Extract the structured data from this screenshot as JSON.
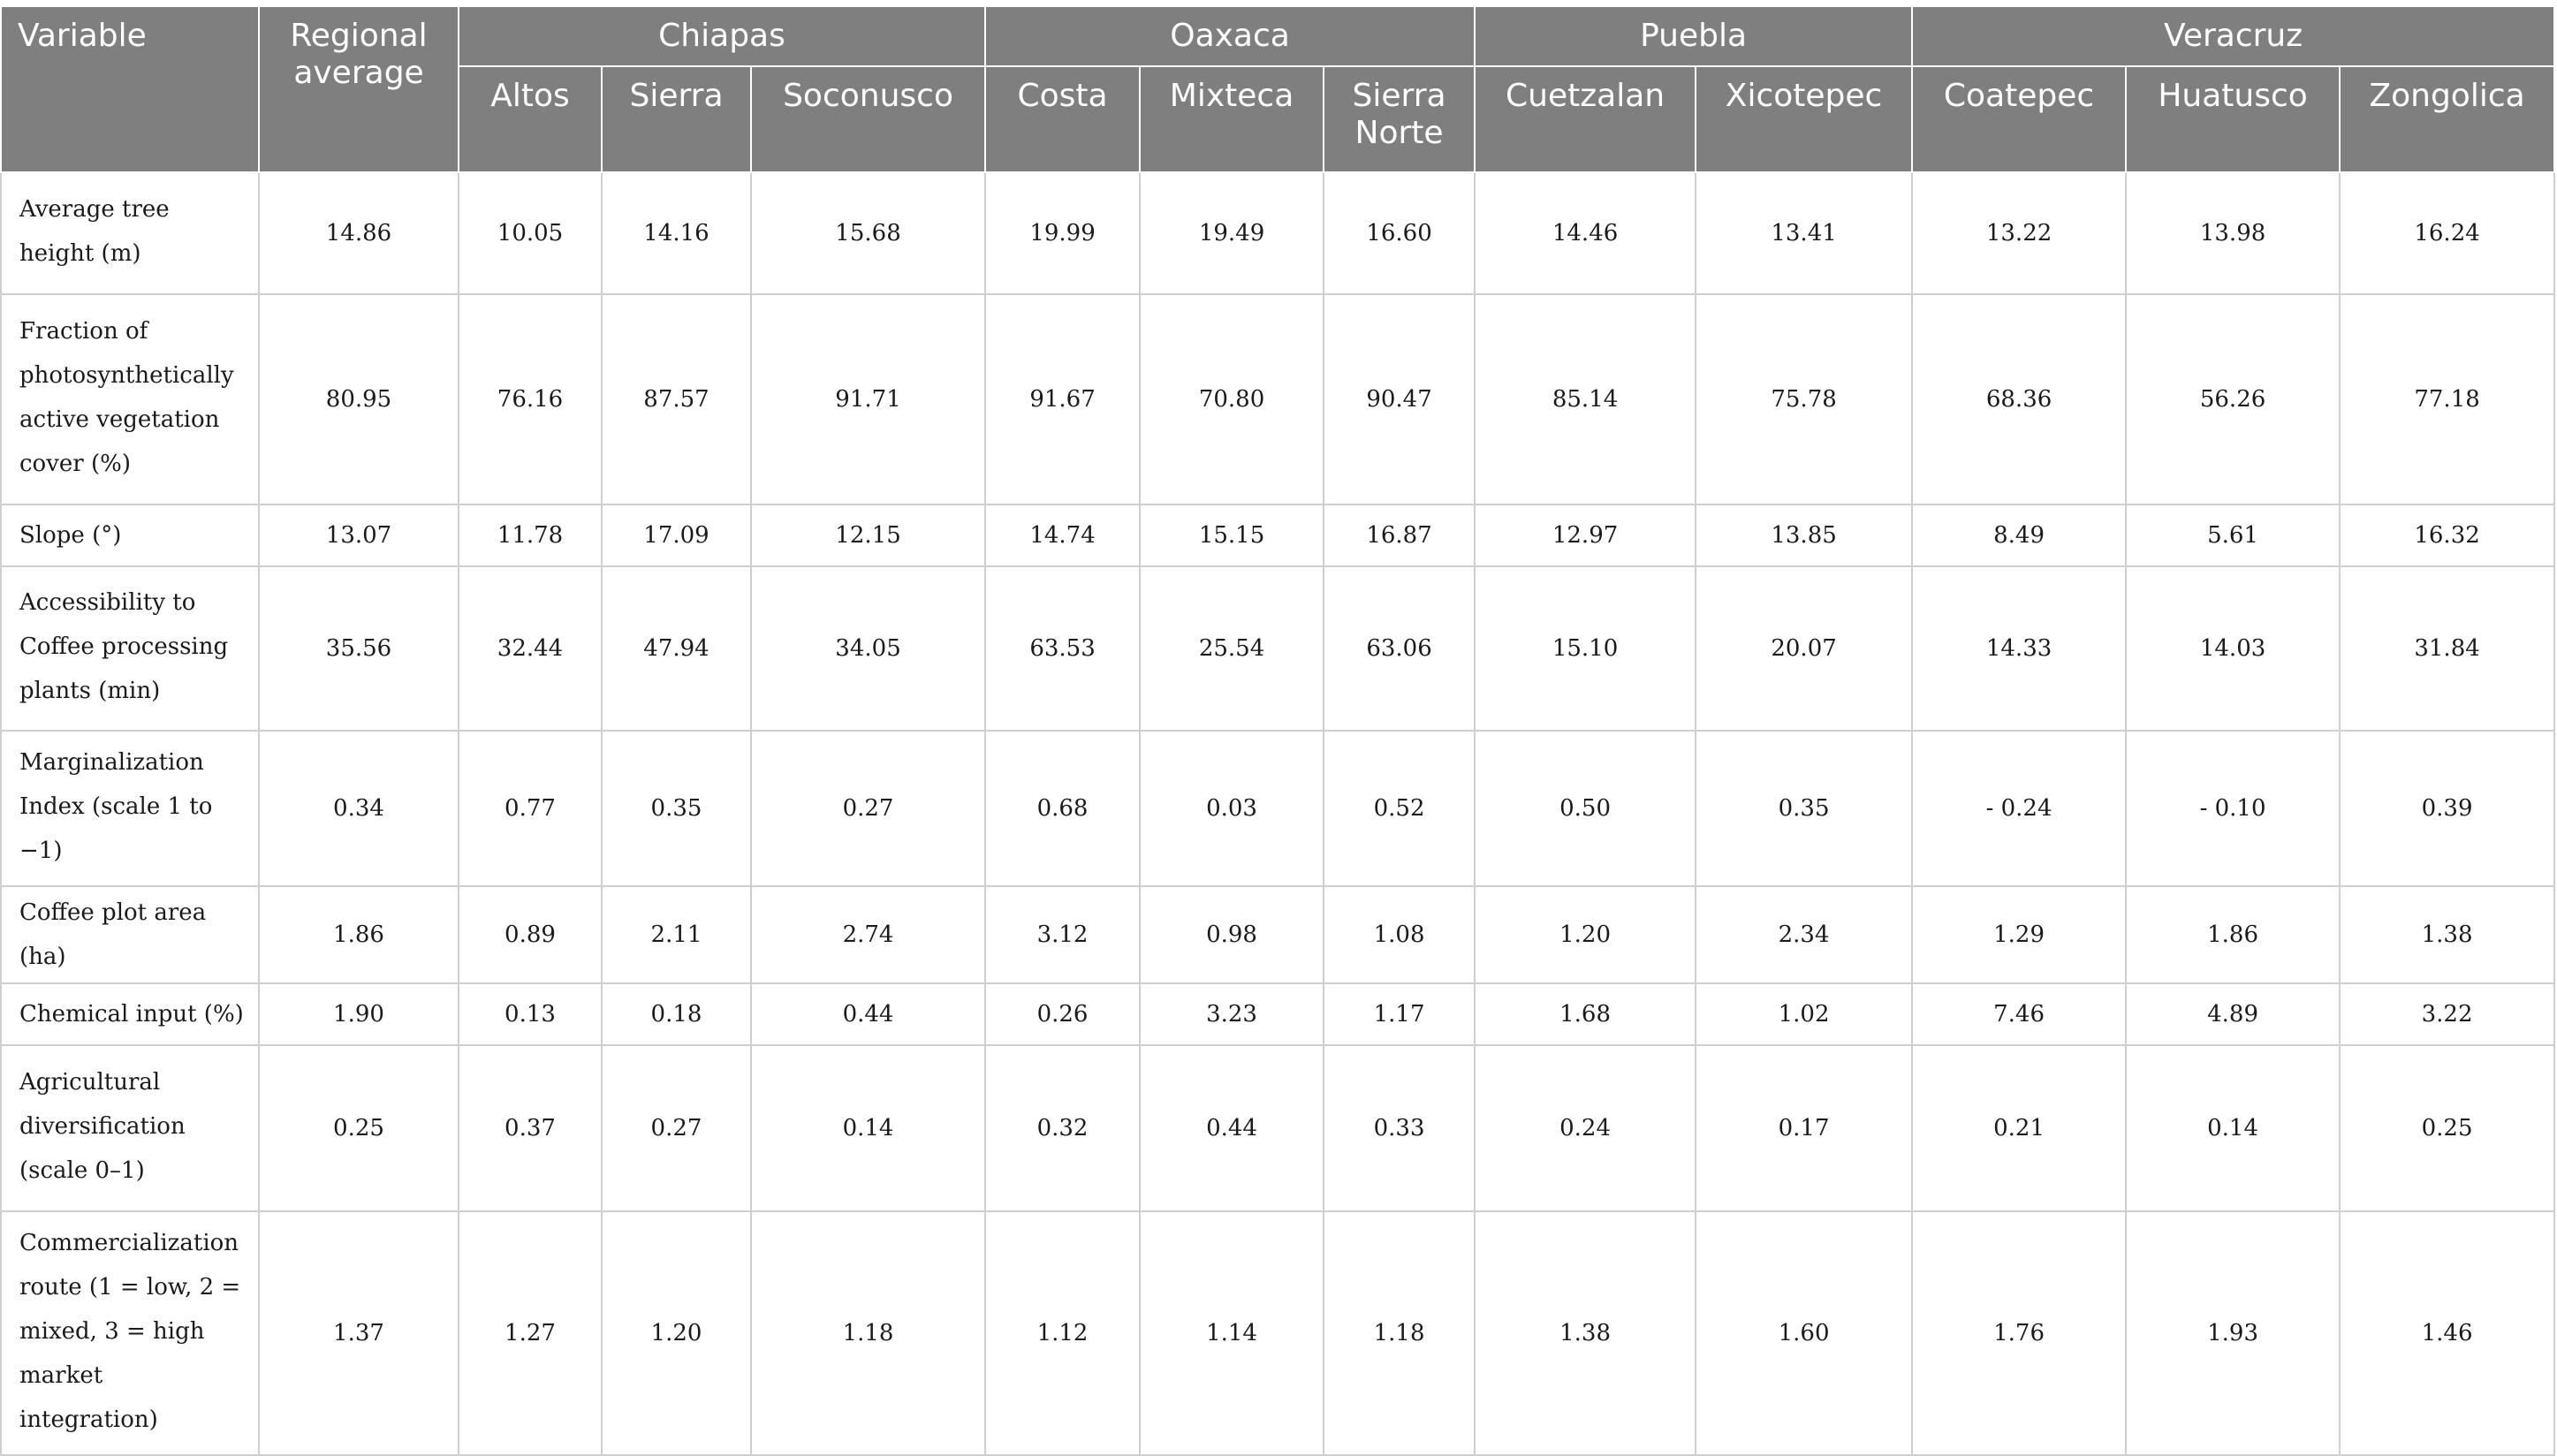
{
  "header": {
    "variable": "Variable",
    "regional_average": "Regional average",
    "states": [
      "Chiapas",
      "Oaxaca",
      "Puebla",
      "Veracruz"
    ],
    "subregions": [
      "Altos",
      "Sierra",
      "Soconusco",
      "Costa",
      "Mixteca",
      "Sierra Norte",
      "Cuetzalan",
      "Xicotepec",
      "Coatepec",
      "Huatusco",
      "Zongolica"
    ]
  },
  "rows": [
    {
      "variable": "Average tree height (m)",
      "values": [
        "14.86",
        "10.05",
        "14.16",
        "15.68",
        "19.99",
        "19.49",
        "16.60",
        "14.46",
        "13.41",
        "13.22",
        "13.98",
        "16.24"
      ]
    },
    {
      "variable": "Fraction of photosynthetically active vegetation cover (%)",
      "values": [
        "80.95",
        "76.16",
        "87.57",
        "91.71",
        "91.67",
        "70.80",
        "90.47",
        "85.14",
        "75.78",
        "68.36",
        "56.26",
        "77.18"
      ]
    },
    {
      "variable": "Slope (°)",
      "values": [
        "13.07",
        "11.78",
        "17.09",
        "12.15",
        "14.74",
        "15.15",
        "16.87",
        "12.97",
        "13.85",
        "8.49",
        "5.61",
        "16.32"
      ]
    },
    {
      "variable": "Accessibility to Coffee processing plants (min)",
      "values": [
        "35.56",
        "32.44",
        "47.94",
        "34.05",
        "63.53",
        "25.54",
        "63.06",
        "15.10",
        "20.07",
        "14.33",
        "14.03",
        "31.84"
      ]
    },
    {
      "variable": "Marginalization Index (scale 1 to −1)",
      "values": [
        "0.34",
        "0.77",
        "0.35",
        "0.27",
        "0.68",
        "0.03",
        "0.52",
        "0.50",
        "0.35",
        "- 0.24",
        "- 0.10",
        "0.39"
      ]
    },
    {
      "variable": "Coffee plot area (ha)",
      "values": [
        "1.86",
        "0.89",
        "2.11",
        "2.74",
        "3.12",
        "0.98",
        "1.08",
        "1.20",
        "2.34",
        "1.29",
        "1.86",
        "1.38"
      ]
    },
    {
      "variable": "Chemical input (%)",
      "values": [
        "1.90",
        "0.13",
        "0.18",
        "0.44",
        "0.26",
        "3.23",
        "1.17",
        "1.68",
        "1.02",
        "7.46",
        "4.89",
        "3.22"
      ]
    },
    {
      "variable": "Agricultural diversification (scale 0–1)",
      "values": [
        "0.25",
        "0.37",
        "0.27",
        "0.14",
        "0.32",
        "0.44",
        "0.33",
        "0.24",
        "0.17",
        "0.21",
        "0.14",
        "0.25"
      ]
    },
    {
      "variable": "Commercialization route (1 = low, 2 = mixed, 3 = high market integration)",
      "values": [
        "1.37",
        "1.27",
        "1.20",
        "1.18",
        "1.12",
        "1.14",
        "1.18",
        "1.38",
        "1.60",
        "1.76",
        "1.93",
        "1.46"
      ]
    }
  ]
}
